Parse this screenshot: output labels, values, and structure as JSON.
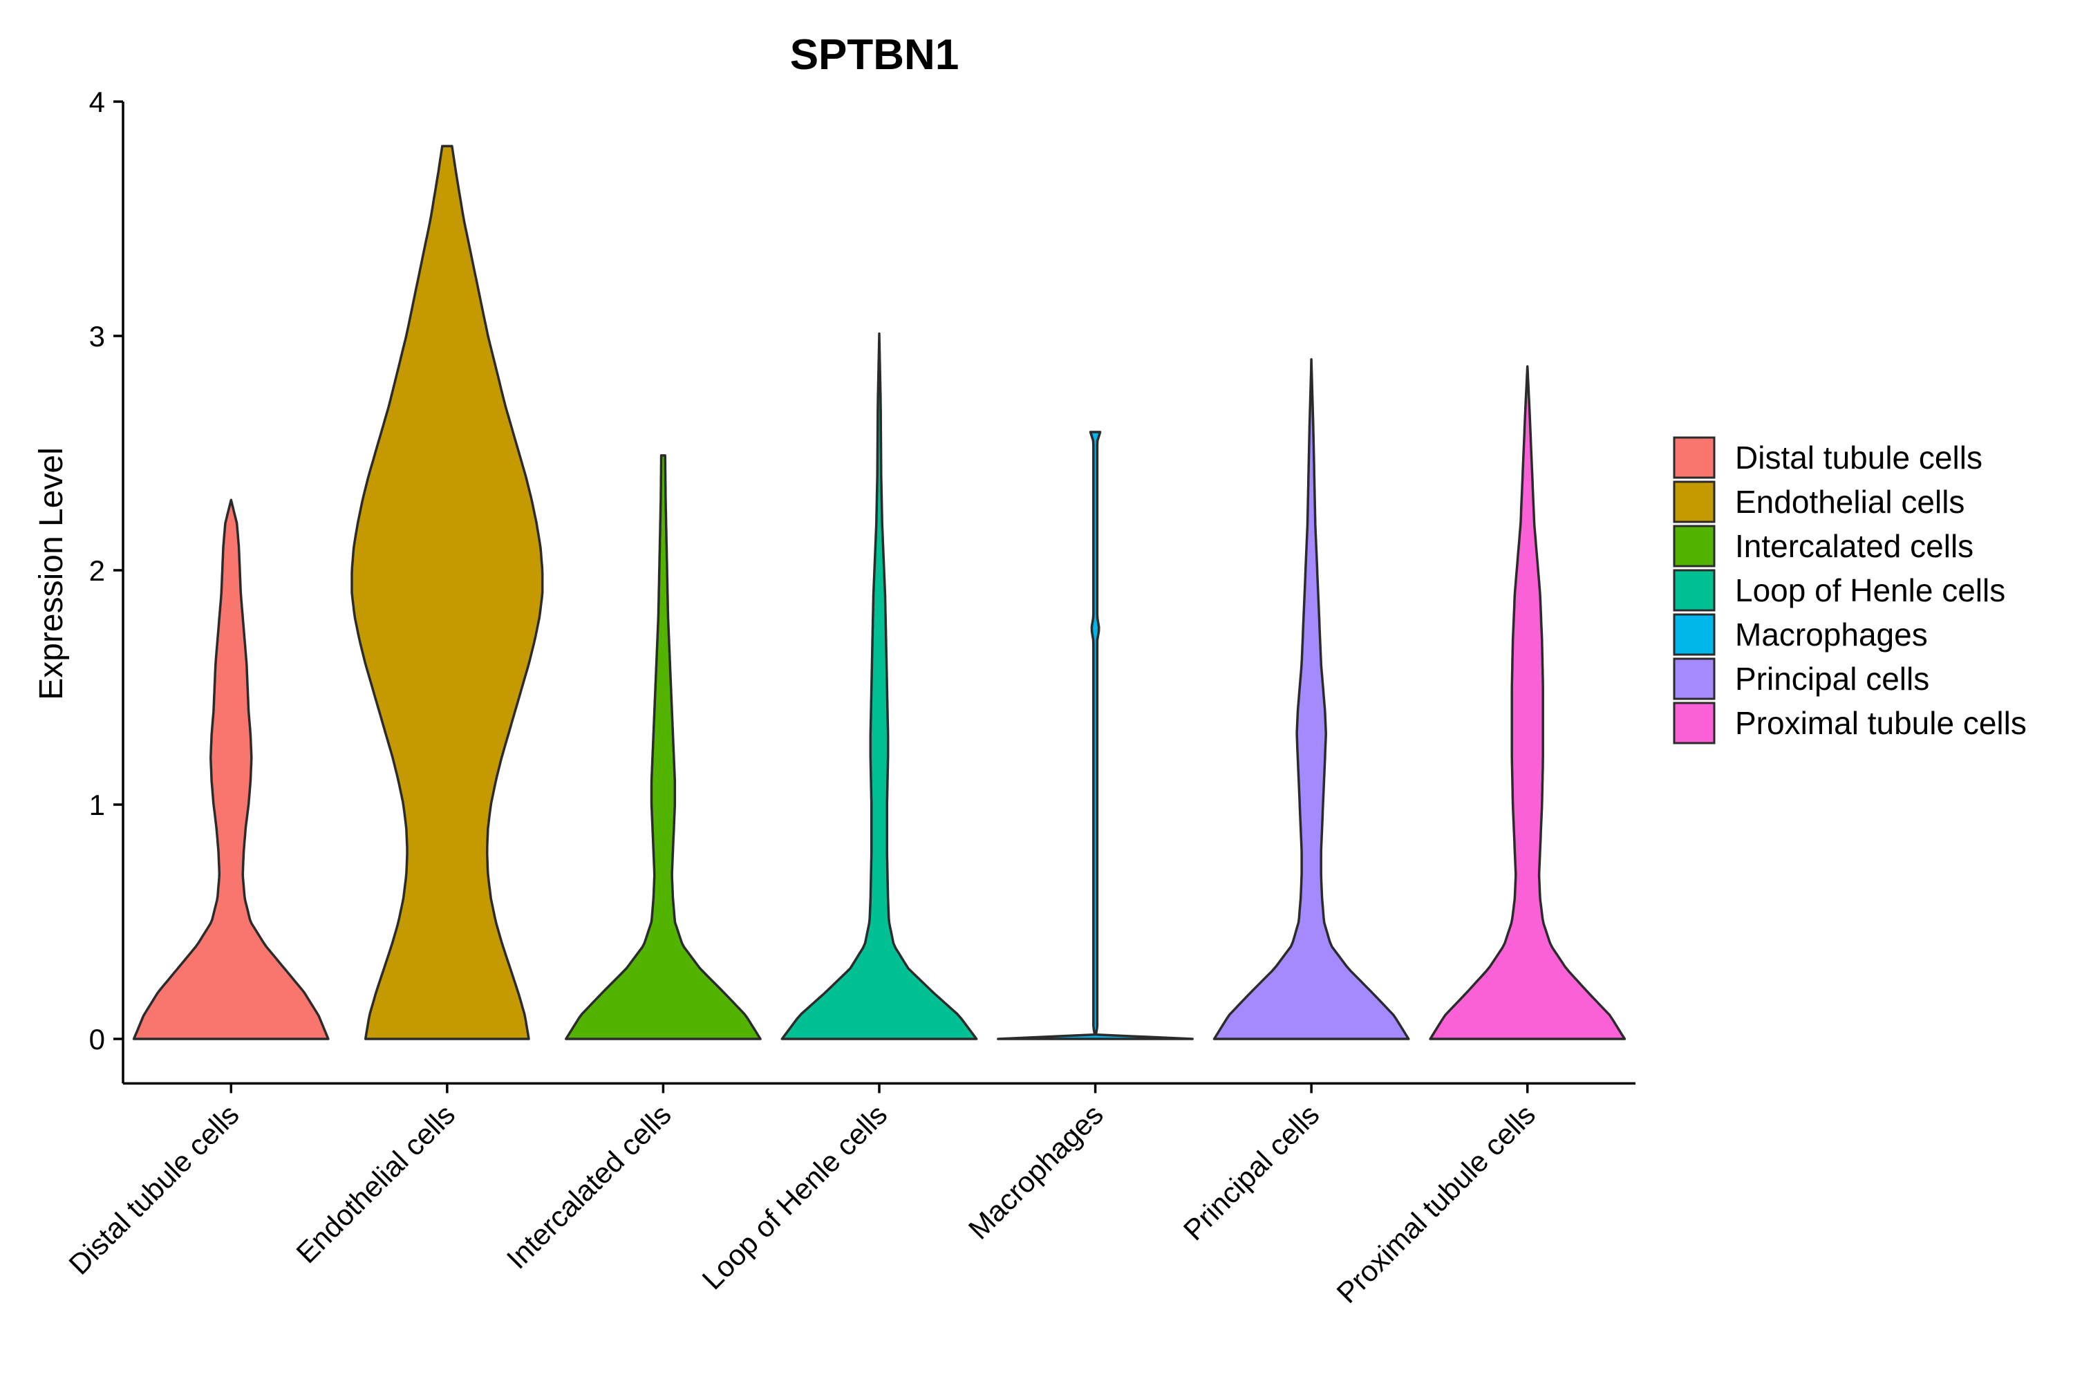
{
  "chart_data": {
    "type": "violin",
    "title": "SPTBN1",
    "xlabel": "",
    "ylabel": "Expression Level",
    "ylim": [
      -0.19,
      4.0
    ],
    "yticks": [
      0,
      1,
      2,
      3,
      4
    ],
    "ytick_labels": [
      "0",
      "1",
      "2",
      "3",
      "4"
    ],
    "grid": false,
    "legend_position": "right",
    "categories": [
      "Distal tubule cells",
      "Endothelial cells",
      "Intercalated cells",
      "Loop of Henle cells",
      "Macrophages",
      "Principal cells",
      "Proximal tubule cells"
    ],
    "colors": [
      "#F8766D",
      "#C49A00",
      "#53B400",
      "#00C094",
      "#00B6EB",
      "#A58AFF",
      "#FB61D7"
    ],
    "outline_color": "#2b2b2b",
    "series": [
      {
        "name": "Distal tubule cells",
        "max": 2.3,
        "density": [
          [
            0,
            1.0
          ],
          [
            0.1,
            0.9
          ],
          [
            0.2,
            0.75
          ],
          [
            0.3,
            0.55
          ],
          [
            0.4,
            0.35
          ],
          [
            0.5,
            0.2
          ],
          [
            0.6,
            0.14
          ],
          [
            0.7,
            0.12
          ],
          [
            0.8,
            0.13
          ],
          [
            0.9,
            0.15
          ],
          [
            1.0,
            0.18
          ],
          [
            1.1,
            0.2
          ],
          [
            1.2,
            0.21
          ],
          [
            1.3,
            0.2
          ],
          [
            1.4,
            0.18
          ],
          [
            1.5,
            0.17
          ],
          [
            1.6,
            0.16
          ],
          [
            1.7,
            0.14
          ],
          [
            1.8,
            0.12
          ],
          [
            1.9,
            0.1
          ],
          [
            2.0,
            0.09
          ],
          [
            2.1,
            0.08
          ],
          [
            2.2,
            0.06
          ],
          [
            2.3,
            0.0
          ]
        ]
      },
      {
        "name": "Endothelial cells",
        "max": 3.81,
        "density": [
          [
            0,
            0.84
          ],
          [
            0.1,
            0.8
          ],
          [
            0.2,
            0.73
          ],
          [
            0.3,
            0.65
          ],
          [
            0.4,
            0.57
          ],
          [
            0.5,
            0.5
          ],
          [
            0.6,
            0.45
          ],
          [
            0.7,
            0.42
          ],
          [
            0.8,
            0.41
          ],
          [
            0.9,
            0.42
          ],
          [
            1.0,
            0.45
          ],
          [
            1.1,
            0.5
          ],
          [
            1.2,
            0.56
          ],
          [
            1.3,
            0.63
          ],
          [
            1.4,
            0.7
          ],
          [
            1.5,
            0.77
          ],
          [
            1.6,
            0.84
          ],
          [
            1.7,
            0.9
          ],
          [
            1.8,
            0.95
          ],
          [
            1.9,
            0.98
          ],
          [
            2.0,
            0.98
          ],
          [
            2.1,
            0.96
          ],
          [
            2.2,
            0.92
          ],
          [
            2.3,
            0.87
          ],
          [
            2.4,
            0.81
          ],
          [
            2.5,
            0.74
          ],
          [
            2.6,
            0.67
          ],
          [
            2.7,
            0.6
          ],
          [
            2.8,
            0.54
          ],
          [
            2.9,
            0.48
          ],
          [
            3.0,
            0.42
          ],
          [
            3.1,
            0.37
          ],
          [
            3.2,
            0.32
          ],
          [
            3.3,
            0.27
          ],
          [
            3.4,
            0.22
          ],
          [
            3.5,
            0.17
          ],
          [
            3.6,
            0.13
          ],
          [
            3.7,
            0.09
          ],
          [
            3.81,
            0.05
          ]
        ]
      },
      {
        "name": "Intercalated cells",
        "max": 2.49,
        "density": [
          [
            0,
            1.0
          ],
          [
            0.1,
            0.85
          ],
          [
            0.2,
            0.62
          ],
          [
            0.3,
            0.38
          ],
          [
            0.4,
            0.2
          ],
          [
            0.5,
            0.12
          ],
          [
            0.6,
            0.1
          ],
          [
            0.7,
            0.09
          ],
          [
            0.8,
            0.1
          ],
          [
            0.9,
            0.11
          ],
          [
            1.0,
            0.12
          ],
          [
            1.1,
            0.12
          ],
          [
            1.2,
            0.11
          ],
          [
            1.3,
            0.1
          ],
          [
            1.4,
            0.09
          ],
          [
            1.5,
            0.08
          ],
          [
            1.6,
            0.07
          ],
          [
            1.7,
            0.06
          ],
          [
            1.8,
            0.05
          ],
          [
            1.9,
            0.045
          ],
          [
            2.0,
            0.04
          ],
          [
            2.1,
            0.035
          ],
          [
            2.2,
            0.03
          ],
          [
            2.3,
            0.025
          ],
          [
            2.49,
            0.02
          ]
        ]
      },
      {
        "name": "Loop of Henle cells",
        "max": 3.01,
        "density": [
          [
            0,
            1.0
          ],
          [
            0.1,
            0.82
          ],
          [
            0.2,
            0.55
          ],
          [
            0.3,
            0.3
          ],
          [
            0.4,
            0.15
          ],
          [
            0.5,
            0.1
          ],
          [
            0.6,
            0.09
          ],
          [
            0.8,
            0.08
          ],
          [
            1.0,
            0.08
          ],
          [
            1.1,
            0.085
          ],
          [
            1.2,
            0.09
          ],
          [
            1.3,
            0.09
          ],
          [
            1.4,
            0.085
          ],
          [
            1.5,
            0.08
          ],
          [
            1.6,
            0.075
          ],
          [
            1.7,
            0.07
          ],
          [
            1.8,
            0.065
          ],
          [
            1.9,
            0.06
          ],
          [
            2.0,
            0.05
          ],
          [
            2.1,
            0.04
          ],
          [
            2.2,
            0.03
          ],
          [
            2.4,
            0.02
          ],
          [
            2.7,
            0.015
          ],
          [
            3.01,
            0.0
          ]
        ]
      },
      {
        "name": "Macrophages",
        "max": 2.59,
        "density": [
          [
            0,
            1.0
          ],
          [
            0.006,
            0.0
          ],
          [
            0.05,
            0.02
          ],
          [
            1.0,
            0.02
          ],
          [
            1.7,
            0.02
          ],
          [
            1.75,
            0.04
          ],
          [
            1.8,
            0.02
          ],
          [
            2.55,
            0.02
          ],
          [
            2.59,
            0.05
          ]
        ]
      },
      {
        "name": "Principal cells",
        "max": 2.9,
        "density": [
          [
            0,
            1.0
          ],
          [
            0.1,
            0.85
          ],
          [
            0.2,
            0.62
          ],
          [
            0.3,
            0.38
          ],
          [
            0.4,
            0.2
          ],
          [
            0.5,
            0.13
          ],
          [
            0.6,
            0.11
          ],
          [
            0.7,
            0.1
          ],
          [
            0.8,
            0.1
          ],
          [
            0.9,
            0.11
          ],
          [
            1.0,
            0.12
          ],
          [
            1.1,
            0.13
          ],
          [
            1.2,
            0.14
          ],
          [
            1.3,
            0.15
          ],
          [
            1.4,
            0.14
          ],
          [
            1.5,
            0.12
          ],
          [
            1.6,
            0.1
          ],
          [
            1.7,
            0.09
          ],
          [
            1.8,
            0.08
          ],
          [
            1.9,
            0.07
          ],
          [
            2.0,
            0.06
          ],
          [
            2.1,
            0.05
          ],
          [
            2.2,
            0.04
          ],
          [
            2.4,
            0.03
          ],
          [
            2.6,
            0.02
          ],
          [
            2.9,
            0.0
          ]
        ]
      },
      {
        "name": "Proximal tubule cells",
        "max": 2.87,
        "density": [
          [
            0,
            1.0
          ],
          [
            0.1,
            0.85
          ],
          [
            0.2,
            0.62
          ],
          [
            0.3,
            0.4
          ],
          [
            0.4,
            0.24
          ],
          [
            0.5,
            0.16
          ],
          [
            0.6,
            0.13
          ],
          [
            0.7,
            0.12
          ],
          [
            0.8,
            0.13
          ],
          [
            0.9,
            0.14
          ],
          [
            1.0,
            0.15
          ],
          [
            1.1,
            0.155
          ],
          [
            1.2,
            0.16
          ],
          [
            1.3,
            0.16
          ],
          [
            1.4,
            0.16
          ],
          [
            1.5,
            0.16
          ],
          [
            1.6,
            0.155
          ],
          [
            1.7,
            0.15
          ],
          [
            1.8,
            0.14
          ],
          [
            1.9,
            0.13
          ],
          [
            2.0,
            0.11
          ],
          [
            2.1,
            0.09
          ],
          [
            2.2,
            0.07
          ],
          [
            2.3,
            0.06
          ],
          [
            2.4,
            0.05
          ],
          [
            2.5,
            0.04
          ],
          [
            2.6,
            0.03
          ],
          [
            2.7,
            0.02
          ],
          [
            2.87,
            0.0
          ]
        ]
      }
    ]
  }
}
